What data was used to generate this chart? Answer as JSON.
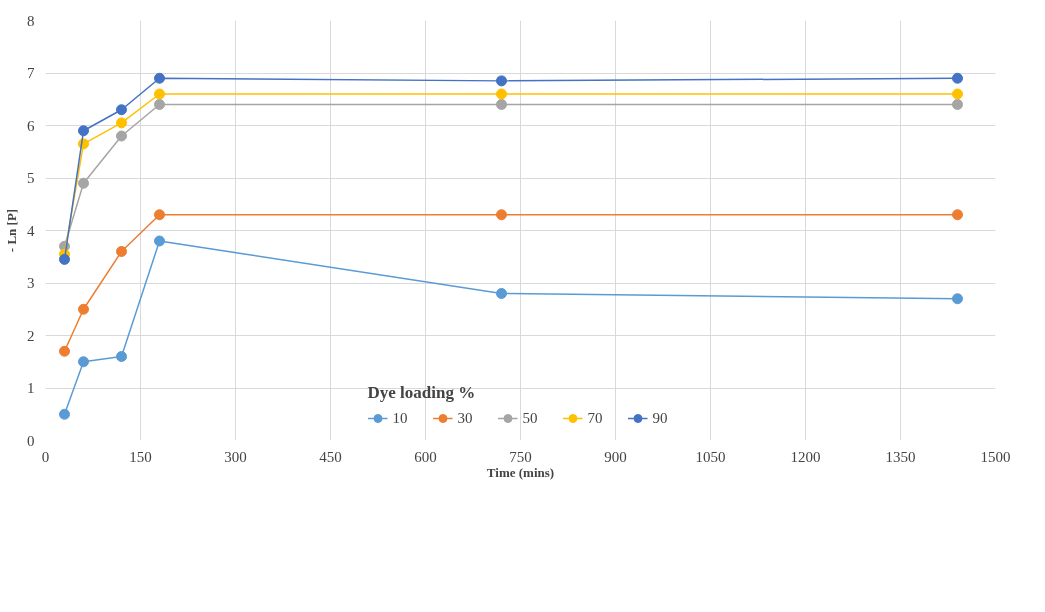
{
  "chart_data": {
    "type": "line",
    "xlabel": "Time (mins)",
    "ylabel": "- Ln [P]",
    "legend_title": "Dye loading %",
    "x": [
      30,
      60,
      120,
      180,
      720,
      1440
    ],
    "series": [
      {
        "name": "10",
        "color": "#5b9bd5",
        "values": [
          0.5,
          1.5,
          1.6,
          3.8,
          2.8,
          2.7
        ]
      },
      {
        "name": "30",
        "color": "#ed7d31",
        "values": [
          1.7,
          2.5,
          3.6,
          4.3,
          4.3,
          4.3
        ]
      },
      {
        "name": "50",
        "color": "#a5a5a5",
        "values": [
          3.7,
          4.9,
          5.8,
          6.4,
          6.4,
          6.4
        ]
      },
      {
        "name": "70",
        "color": "#ffc000",
        "values": [
          3.55,
          5.65,
          6.05,
          6.6,
          6.6,
          6.6
        ]
      },
      {
        "name": "90",
        "color": "#4472c4",
        "values": [
          3.45,
          5.9,
          6.3,
          6.9,
          6.85,
          6.9
        ]
      }
    ],
    "xlim": [
      0,
      1500
    ],
    "xticks": [
      0,
      150,
      300,
      450,
      600,
      750,
      900,
      1050,
      1200,
      1350,
      1500
    ],
    "ylim": [
      0,
      8
    ],
    "yticks": [
      0,
      1,
      2,
      3,
      4,
      5,
      6,
      7,
      8
    ],
    "grid": true,
    "legend": "bottom",
    "marker": "circle",
    "line_style": "solid"
  }
}
